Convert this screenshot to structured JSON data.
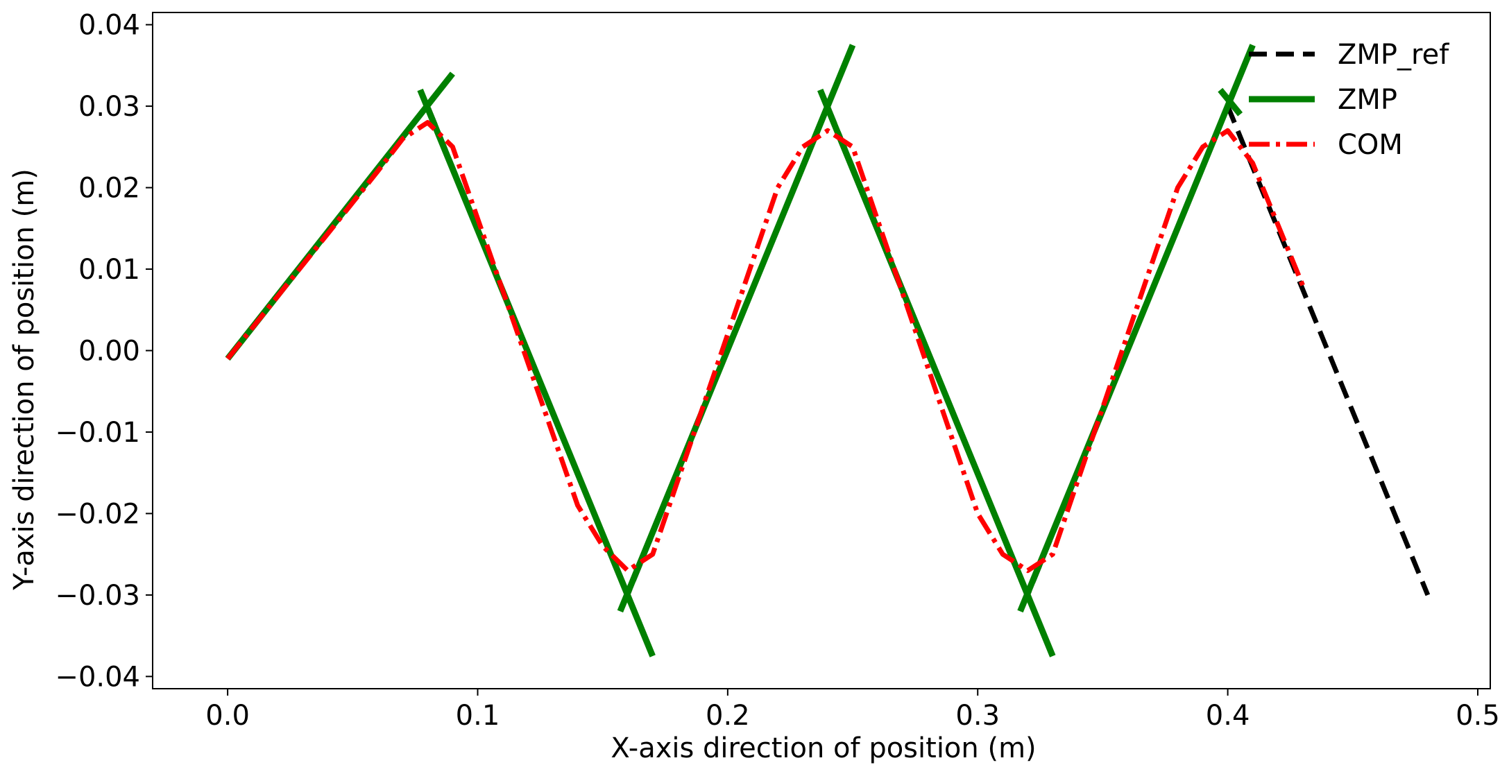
{
  "chart_data": {
    "type": "line",
    "xlabel": "X-axis direction of position (m)",
    "ylabel": "Y-axis direction of position (m)",
    "xlim": [
      -0.03,
      0.505
    ],
    "ylim": [
      -0.0415,
      0.0415
    ],
    "xticks": [
      0.0,
      0.1,
      0.2,
      0.3,
      0.4,
      0.5
    ],
    "xtick_labels": [
      "0.0",
      "0.1",
      "0.2",
      "0.3",
      "0.4",
      "0.5"
    ],
    "yticks": [
      0.04,
      0.03,
      0.02,
      0.01,
      0.0,
      -0.01,
      -0.02,
      -0.03,
      -0.04
    ],
    "ytick_labels": [
      "0.04",
      "0.03",
      "0.02",
      "0.01",
      "0.00",
      "−0.01",
      "−0.02",
      "−0.03",
      "−0.04"
    ],
    "grid": false,
    "legend_position": "top-right",
    "series": [
      {
        "name": "ZMP_ref",
        "color": "#000000",
        "style": "dashed",
        "x": [
          0.0,
          0.08,
          0.16,
          0.24,
          0.32,
          0.4,
          0.48
        ],
        "y": [
          -0.001,
          0.03,
          -0.03,
          0.03,
          -0.03,
          0.03,
          -0.03
        ]
      },
      {
        "name": "ZMP",
        "color": "#008000",
        "style": "solid",
        "segments": [
          {
            "x": [
              0.0,
              0.09
            ],
            "y": [
              -0.001,
              0.034
            ]
          },
          {
            "x": [
              0.077,
              0.17
            ],
            "y": [
              0.032,
              -0.0375
            ]
          },
          {
            "x": [
              0.157,
              0.25
            ],
            "y": [
              -0.032,
              0.0375
            ]
          },
          {
            "x": [
              0.237,
              0.33
            ],
            "y": [
              0.032,
              -0.0375
            ]
          },
          {
            "x": [
              0.317,
              0.41
            ],
            "y": [
              -0.032,
              0.0375
            ]
          },
          {
            "x": [
              0.397,
              0.405
            ],
            "y": [
              0.032,
              0.029
            ]
          }
        ]
      },
      {
        "name": "COM",
        "color": "#ff0000",
        "style": "dashdot",
        "x": [
          0.0,
          0.06,
          0.07,
          0.08,
          0.09,
          0.14,
          0.15,
          0.16,
          0.17,
          0.22,
          0.23,
          0.24,
          0.25,
          0.3,
          0.31,
          0.32,
          0.33,
          0.38,
          0.39,
          0.4,
          0.41,
          0.43
        ],
        "y": [
          -0.001,
          0.022,
          0.026,
          0.028,
          0.025,
          -0.019,
          -0.024,
          -0.027,
          -0.025,
          0.02,
          0.025,
          0.027,
          0.025,
          -0.02,
          -0.025,
          -0.027,
          -0.025,
          0.02,
          0.025,
          0.027,
          0.023,
          0.008
        ]
      }
    ]
  }
}
